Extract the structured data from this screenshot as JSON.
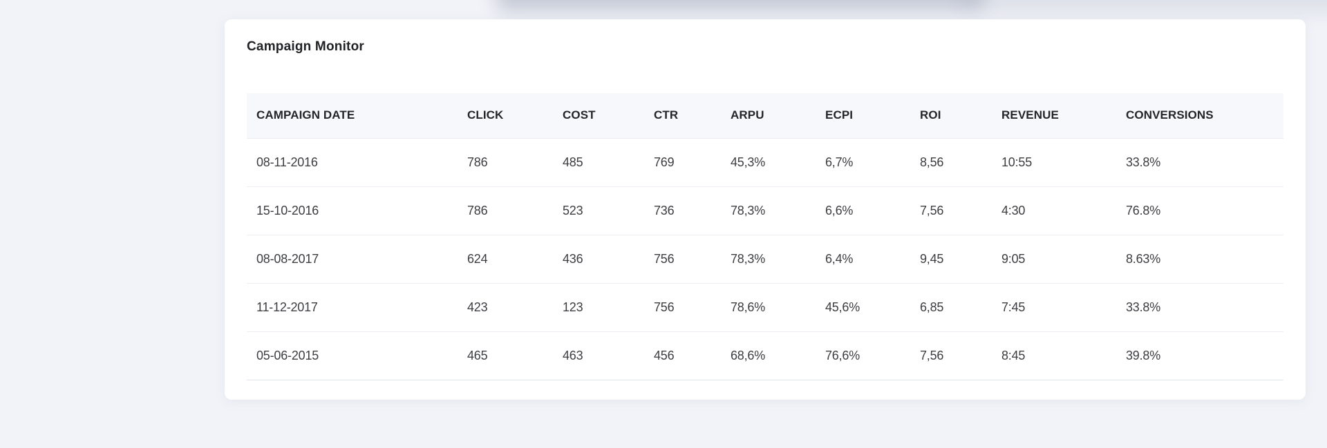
{
  "colors": {
    "page_background": "#f1f3f8",
    "card_background": "#ffffff",
    "header_row_background": "#f7f8fb",
    "row_border": "#ebedf2",
    "table_bottom_border": "#dfe4ee",
    "title_text": "#212226",
    "header_text": "#23252a",
    "cell_text": "#3c3d41"
  },
  "card": {
    "title": "Campaign Monitor"
  },
  "table": {
    "columns": [
      {
        "key": "campaign_date",
        "label": "CAMPAIGN DATE"
      },
      {
        "key": "click",
        "label": "CLICK"
      },
      {
        "key": "cost",
        "label": "COST"
      },
      {
        "key": "ctr",
        "label": "CTR"
      },
      {
        "key": "arpu",
        "label": "ARPU"
      },
      {
        "key": "ecpi",
        "label": "ECPI"
      },
      {
        "key": "roi",
        "label": "ROI"
      },
      {
        "key": "revenue",
        "label": "REVENUE"
      },
      {
        "key": "conversions",
        "label": "CONVERSIONS"
      }
    ],
    "rows": [
      {
        "campaign_date": "08-11-2016",
        "click": "786",
        "cost": "485",
        "ctr": "769",
        "arpu": "45,3%",
        "ecpi": "6,7%",
        "roi": "8,56",
        "revenue": "10:55",
        "conversions": "33.8%"
      },
      {
        "campaign_date": "15-10-2016",
        "click": "786",
        "cost": "523",
        "ctr": "736",
        "arpu": "78,3%",
        "ecpi": "6,6%",
        "roi": "7,56",
        "revenue": "4:30",
        "conversions": "76.8%"
      },
      {
        "campaign_date": "08-08-2017",
        "click": "624",
        "cost": "436",
        "ctr": "756",
        "arpu": "78,3%",
        "ecpi": "6,4%",
        "roi": "9,45",
        "revenue": "9:05",
        "conversions": "8.63%"
      },
      {
        "campaign_date": "11-12-2017",
        "click": "423",
        "cost": "123",
        "ctr": "756",
        "arpu": "78,6%",
        "ecpi": "45,6%",
        "roi": "6,85",
        "revenue": "7:45",
        "conversions": "33.8%"
      },
      {
        "campaign_date": "05-06-2015",
        "click": "465",
        "cost": "463",
        "ctr": "456",
        "arpu": "68,6%",
        "ecpi": "76,6%",
        "roi": "7,56",
        "revenue": "8:45",
        "conversions": "39.8%"
      }
    ]
  }
}
